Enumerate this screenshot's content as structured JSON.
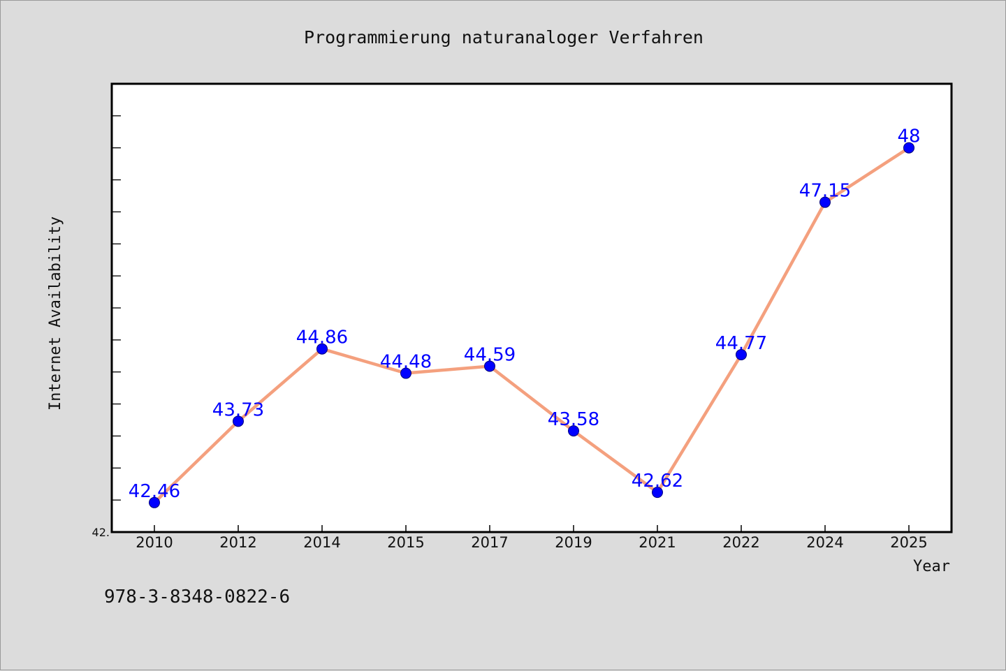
{
  "chart_data": {
    "type": "line",
    "title": "Programmierung naturanaloger Verfahren",
    "xlabel": "Year",
    "ylabel": "Internet Availability",
    "categories": [
      "2010",
      "2012",
      "2014",
      "2015",
      "2017",
      "2019",
      "2021",
      "2022",
      "2024",
      "2025"
    ],
    "values": [
      42.46,
      43.73,
      44.86,
      44.48,
      44.59,
      43.58,
      42.62,
      44.77,
      47.15,
      48
    ],
    "data_labels": [
      "42.46",
      "43.73",
      "44.86",
      "44.48",
      "44.59",
      "43.58",
      "42.62",
      "44.77",
      "47.15",
      "48"
    ],
    "ylim": [
      42,
      49
    ],
    "y_tick_labels": [
      "42."
    ],
    "grid": false,
    "legend": "none",
    "colors": {
      "line": "#f4a07e",
      "marker": "#0000ff",
      "label": "#0000ff",
      "plot_background": "#ffffff",
      "page_background": "#dcdcdc"
    }
  },
  "footer_note": "978-3-8348-0822-6"
}
